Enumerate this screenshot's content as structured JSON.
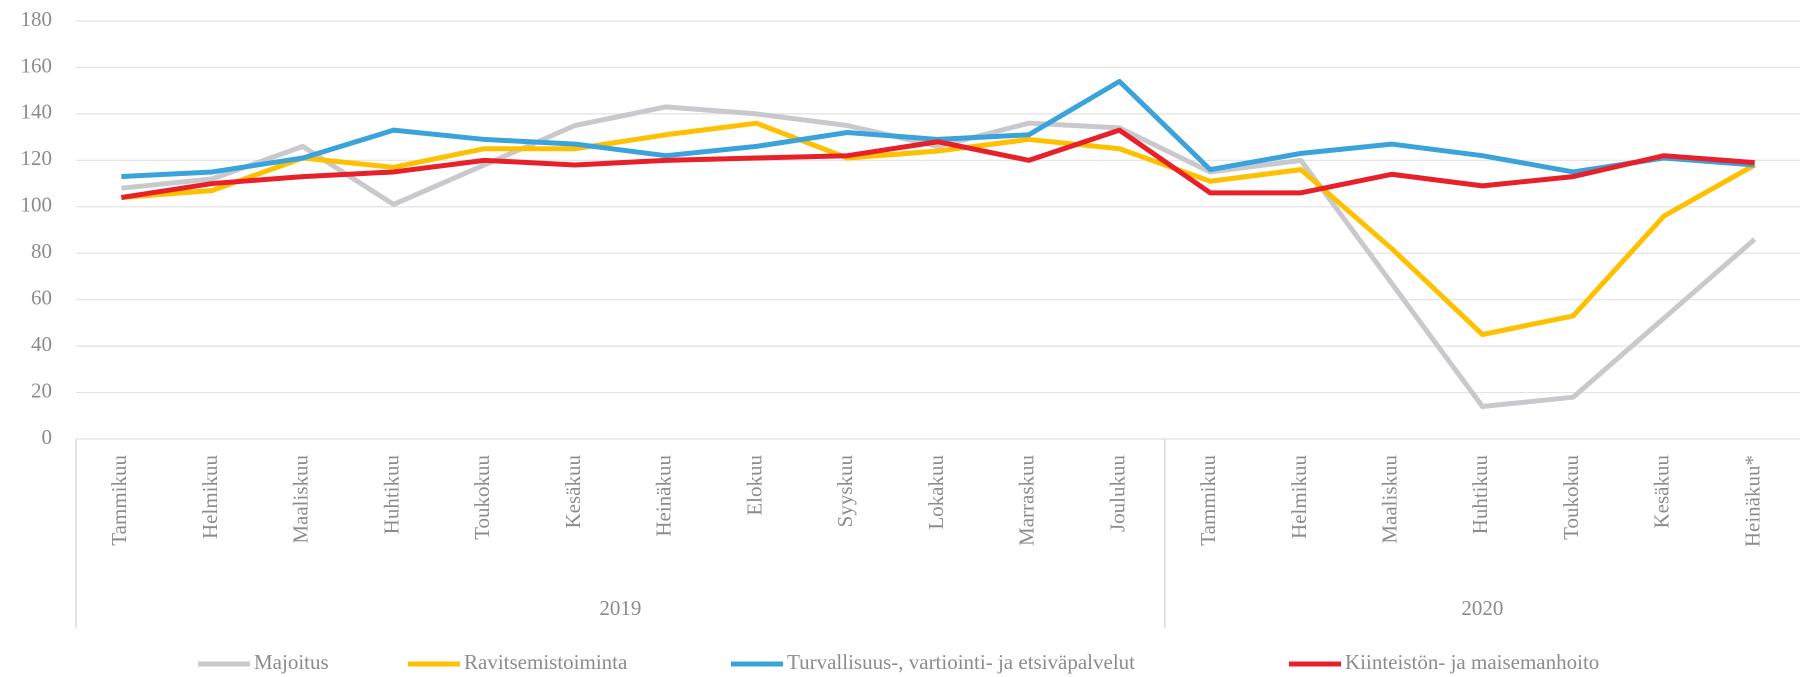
{
  "chart_data": {
    "type": "line",
    "groups": [
      {
        "label": "2019",
        "categories": [
          "Tammikuu",
          "Helmikuu",
          "Maaliskuu",
          "Huhtikuu",
          "Toukokuu",
          "Kesäkuu",
          "Heinäkuu",
          "Elokuu",
          "Syyskuu",
          "Lokakuu",
          "Marraskuu",
          "Joulukuu"
        ]
      },
      {
        "label": "2020",
        "categories": [
          "Tammikuu",
          "Helmikuu",
          "Maaliskuu",
          "Huhtikuu",
          "Toukokuu",
          "Kesäkuu",
          "Heinäkuu*"
        ]
      }
    ],
    "series": [
      {
        "name": "Majoitus",
        "color": "#c9c9cd",
        "values": [
          108,
          112,
          126,
          101,
          118,
          135,
          143,
          140,
          135,
          126,
          136,
          134,
          115,
          120,
          67,
          14,
          18,
          52,
          86
        ]
      },
      {
        "name": "Ravitsemistoiminta",
        "color": "#ffc000",
        "values": [
          104,
          107,
          121,
          117,
          125,
          125,
          131,
          136,
          121,
          124,
          129,
          125,
          111,
          116,
          82,
          45,
          53,
          96,
          118
        ]
      },
      {
        "name": "Turvallisuus-, vartiointi- ja etsiväpalvelut",
        "color": "#3ba3dc",
        "values": [
          113,
          115,
          121,
          133,
          129,
          127,
          122,
          126,
          132,
          129,
          131,
          154,
          116,
          123,
          127,
          122,
          115,
          121,
          118
        ]
      },
      {
        "name": "Kiinteistön- ja maisemanhoito",
        "color": "#e8202a",
        "values": [
          104,
          110,
          113,
          115,
          120,
          118,
          120,
          121,
          122,
          128,
          120,
          133,
          106,
          106,
          114,
          109,
          113,
          122,
          119
        ]
      }
    ],
    "ylim": [
      0,
      180
    ],
    "yticks": [
      0,
      20,
      40,
      60,
      80,
      100,
      120,
      140,
      160,
      180
    ],
    "grid": true,
    "legend": "bottom"
  }
}
